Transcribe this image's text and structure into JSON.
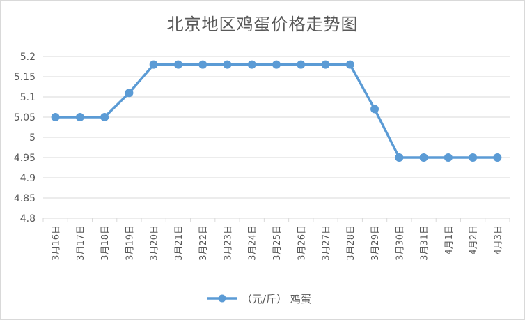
{
  "chart_data": {
    "type": "line",
    "title": "北京地区鸡蛋价格走势图",
    "categories": [
      "3月16日",
      "3月17日",
      "3月18日",
      "3月19日",
      "3月20日",
      "3月21日",
      "3月22日",
      "3月23日",
      "3月24日",
      "3月25日",
      "3月26日",
      "3月27日",
      "3月28日",
      "3月29日",
      "3月30日",
      "3月31日",
      "4月1日",
      "4月2日",
      "4月3日"
    ],
    "series": [
      {
        "name": "（元/斤） 鸡蛋",
        "values": [
          5.05,
          5.05,
          5.05,
          5.11,
          5.18,
          5.18,
          5.18,
          5.18,
          5.18,
          5.18,
          5.18,
          5.18,
          5.18,
          5.07,
          4.95,
          4.95,
          4.95,
          4.95,
          4.95
        ],
        "color": "#5b9bd5"
      }
    ],
    "ylim": [
      4.8,
      5.2
    ],
    "yticks": [
      "4.8",
      "4.85",
      "4.9",
      "4.95",
      "5",
      "5.05",
      "5.1",
      "5.15",
      "5.2"
    ],
    "grid": true,
    "legend": "bottom"
  },
  "colors": {
    "line": "#5b9bd5",
    "grid": "#d9d9d9",
    "text": "#595959"
  }
}
